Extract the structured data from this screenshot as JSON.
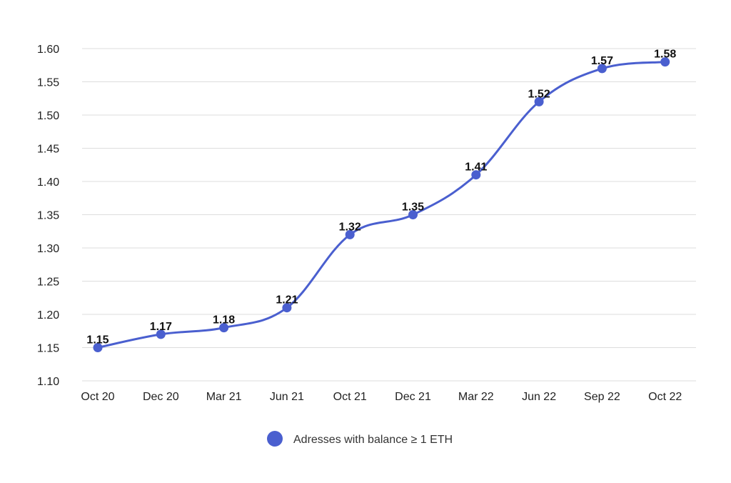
{
  "chart_data": {
    "type": "line",
    "title": "",
    "xlabel": "",
    "ylabel": "",
    "categories": [
      "Oct 20",
      "Dec 20",
      "Mar 21",
      "Jun 21",
      "Oct 21",
      "Dec 21",
      "Mar 22",
      "Jun 22",
      "Sep 22",
      "Oct 22"
    ],
    "series": [
      {
        "name": "Adresses with balance ≥ 1 ETH",
        "values": [
          1.15,
          1.17,
          1.18,
          1.21,
          1.32,
          1.35,
          1.41,
          1.52,
          1.57,
          1.58
        ],
        "color": "#4a5fcf"
      }
    ],
    "yticks": [
      "1.10",
      "1.15",
      "1.20",
      "1.25",
      "1.30",
      "1.35",
      "1.40",
      "1.45",
      "1.50",
      "1.55",
      "1.60"
    ],
    "ylim": [
      1.1,
      1.6
    ],
    "grid": true,
    "data_labels": true,
    "legend_position": "bottom-center"
  }
}
